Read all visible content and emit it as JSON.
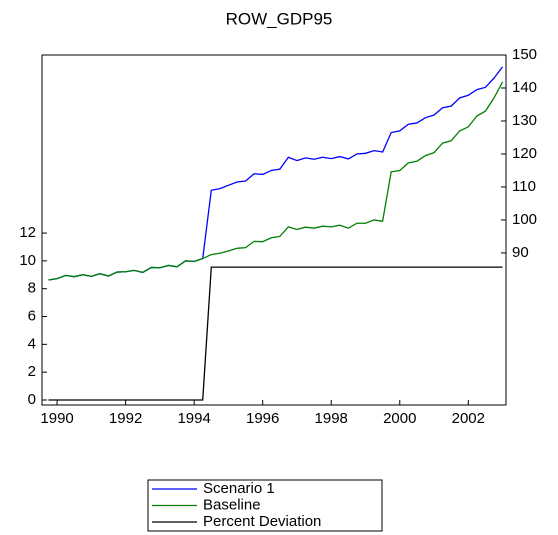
{
  "chart_data": {
    "type": "line",
    "title": "ROW_GDP95",
    "x": [
      1989.75,
      1990,
      1990.25,
      1990.5,
      1990.75,
      1991,
      1991.25,
      1991.5,
      1991.75,
      1992,
      1992.25,
      1992.5,
      1992.75,
      1993,
      1993.25,
      1993.5,
      1993.75,
      1994,
      1994.25,
      1994.5,
      1994.75,
      1995,
      1995.25,
      1995.5,
      1995.75,
      1996,
      1996.25,
      1996.5,
      1996.75,
      1997,
      1997.25,
      1997.5,
      1997.75,
      1998,
      1998.25,
      1998.5,
      1998.75,
      1999,
      1999.25,
      1999.5,
      1999.75,
      2000,
      2000.25,
      2000.5,
      2000.75,
      2001,
      2001.25,
      2001.5,
      2001.75,
      2002,
      2002.25,
      2002.5,
      2002.75,
      2003
    ],
    "series": [
      {
        "name": "Scenario 1",
        "color": "#0000ff",
        "axis": "y2",
        "values": [
          81.8,
          82.2,
          83.2,
          82.8,
          83.4,
          82.9,
          83.7,
          83.0,
          84.2,
          84.3,
          84.7,
          84.1,
          85.6,
          85.5,
          86.2,
          85.8,
          87.6,
          87.4,
          88.3,
          109.0,
          109.5,
          110.5,
          111.5,
          111.8,
          114.0,
          113.8,
          115.0,
          115.4,
          119.0,
          118.0,
          118.8,
          118.4,
          119.0,
          118.6,
          119.2,
          118.5,
          120.0,
          120.2,
          121.0,
          120.6,
          126.5,
          127.0,
          129.0,
          129.4,
          131.0,
          131.8,
          134.0,
          134.5,
          137.0,
          137.8,
          139.5,
          140.2,
          143.0,
          146.4
        ]
      },
      {
        "name": "Baseline",
        "color": "#008000",
        "axis": "y2",
        "values": [
          81.8,
          82.2,
          83.2,
          82.8,
          83.4,
          82.9,
          83.7,
          83.0,
          84.2,
          84.3,
          84.7,
          84.1,
          85.6,
          85.5,
          86.2,
          85.8,
          87.6,
          87.4,
          88.3,
          89.5,
          89.9,
          90.6,
          91.4,
          91.6,
          93.5,
          93.4,
          94.6,
          95.0,
          97.9,
          97.1,
          97.8,
          97.5,
          98.1,
          97.9,
          98.4,
          97.5,
          99.0,
          99.0,
          100.0,
          99.6,
          114.6,
          115.0,
          117.3,
          117.8,
          119.5,
          120.4,
          123.3,
          124.0,
          127.0,
          128.2,
          131.5,
          133.0,
          137.0,
          141.8
        ]
      },
      {
        "name": "Percent Deviation",
        "color": "#000000",
        "values": [
          0,
          0,
          0,
          0,
          0,
          0,
          0,
          0,
          0,
          0,
          0,
          0,
          0,
          0,
          0,
          0,
          0,
          0,
          0,
          9.55,
          9.55,
          9.55,
          9.55,
          9.55,
          9.55,
          9.55,
          9.55,
          9.55,
          9.55,
          9.55,
          9.55,
          9.55,
          9.55,
          9.55,
          9.55,
          9.55,
          9.55,
          9.55,
          9.55,
          9.55,
          9.55,
          9.55,
          9.55,
          9.55,
          9.55,
          9.55,
          9.55,
          9.55,
          9.55,
          9.55,
          9.55,
          9.55,
          9.55,
          9.55
        ]
      }
    ],
    "xlim": [
      1989.56,
      2003.1
    ],
    "xticks": [
      1990,
      1992,
      1994,
      1996,
      1998,
      2000,
      2002
    ],
    "ylim": [
      -0.36,
      24.8
    ],
    "yticks": [
      0,
      2,
      4,
      6,
      8,
      10,
      12
    ],
    "y2lim": [
      43.9,
      150
    ],
    "y2ticks": [
      90,
      100,
      110,
      120,
      130,
      140,
      150
    ]
  }
}
